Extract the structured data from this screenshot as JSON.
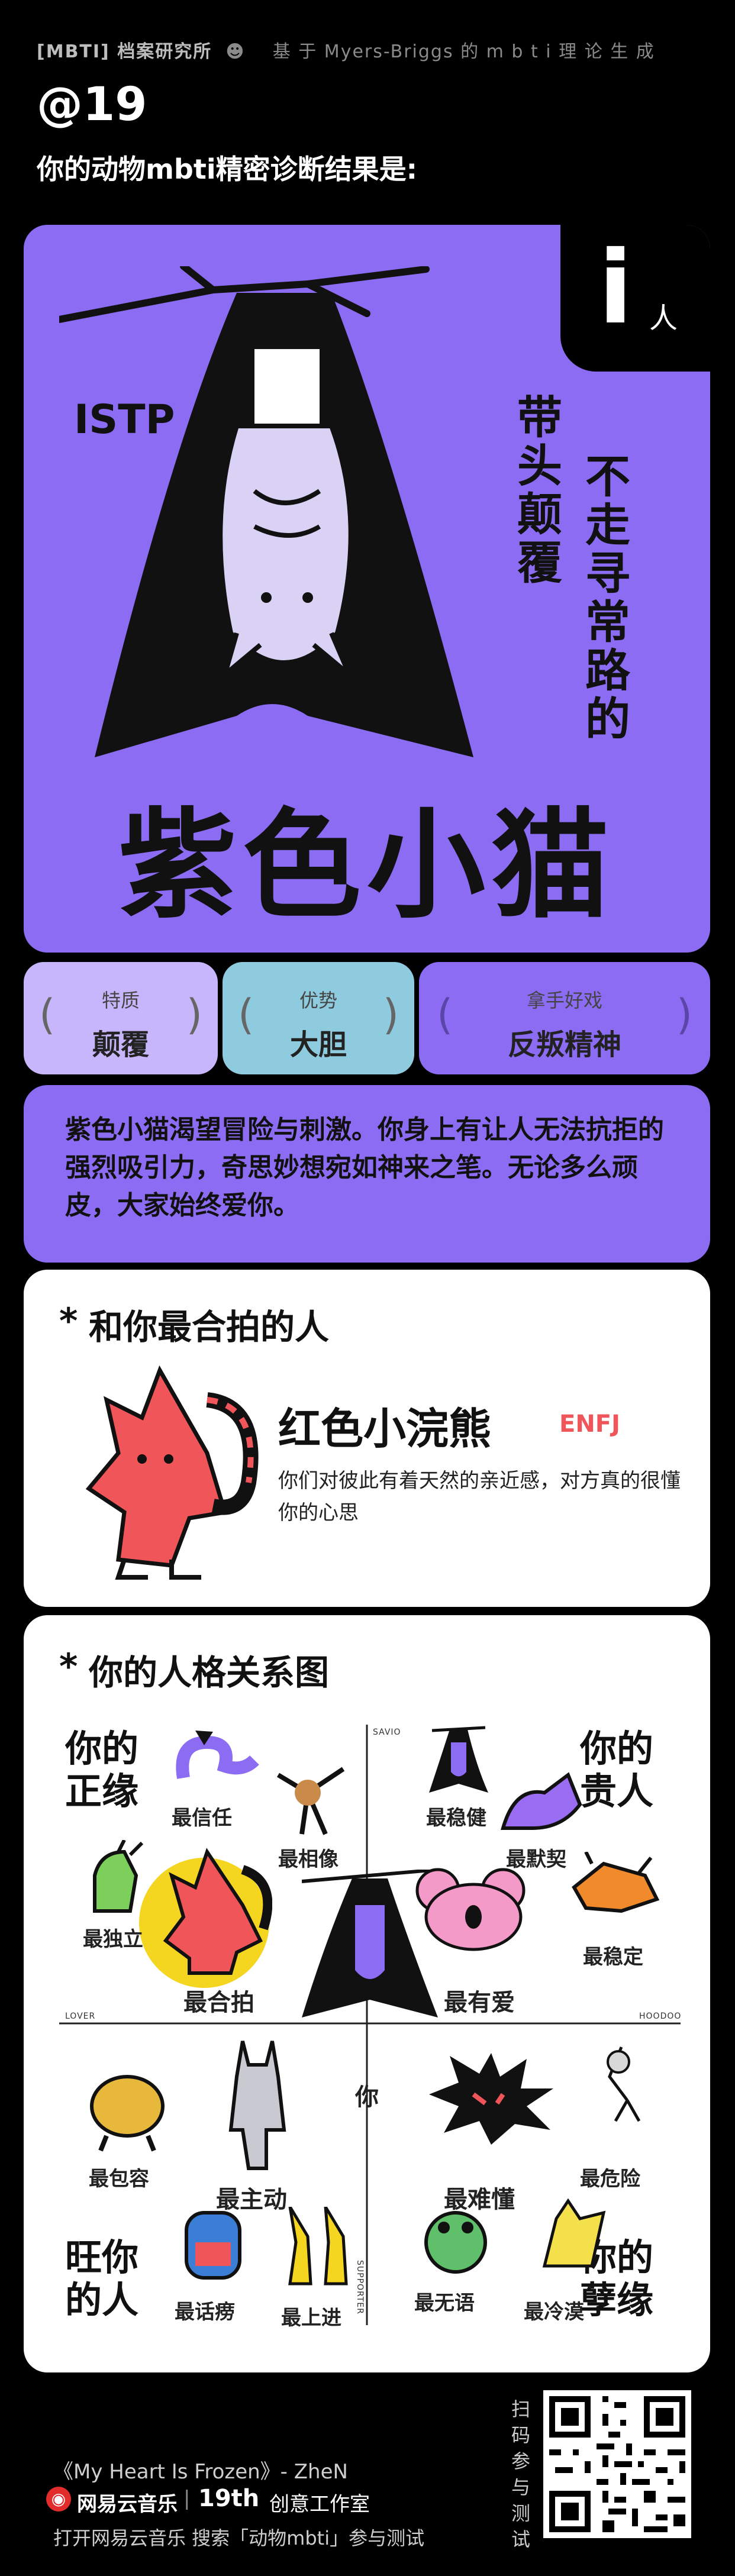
{
  "header": {
    "brand": "[MBTI] 档案研究所",
    "tagline": "基 于 Myers-Briggs 的 m b t i 理 论 生 成",
    "number": "@19",
    "subtitle": "你的动物mbti精密诊断结果是:"
  },
  "result": {
    "letter": "i",
    "letter_label": "人",
    "mbti": "ISTP",
    "trait_col1": "带头颠覆",
    "trait_col2": "不走寻常路的",
    "name": "紫色小猫"
  },
  "traits": [
    {
      "title": "特质",
      "value": "颠覆",
      "color": "#c7b6fb"
    },
    {
      "title": "优势",
      "value": "大胆",
      "color": "#8fcbdf"
    },
    {
      "title": "拿手好戏",
      "value": "反叛精神",
      "color": "#8b6cf2"
    }
  ],
  "description": "紫色小猫渴望冒险与刺激。你身上有让人无法抗拒的强烈吸引力，奇思妙想宛如神来之笔。无论多么顽皮，大家始终爱你。",
  "match": {
    "heading": "和你最合拍的人",
    "name": "红色小浣熊",
    "mbti": "ENFJ",
    "text": "你们对彼此有着天然的亲近感，对方真的很懂你的心思"
  },
  "relations": {
    "heading": "你的人格关系图",
    "corner_tl": "你的正缘",
    "corner_tr": "你的贵人",
    "corner_bl": "旺你的人",
    "corner_br": "你的孽缘",
    "axis_top": "SAVIO",
    "axis_left": "LOVER",
    "axis_right": "HOODOO",
    "axis_bottom": "SUPPORTER",
    "center": "你",
    "labels": {
      "l1": "最信任",
      "l2": "最相像",
      "l3": "最独立",
      "l4": "最合拍",
      "r1": "最稳健",
      "r2": "最默契",
      "r3": "最有爱",
      "r4": "最稳定",
      "b1": "最包容",
      "b2": "最主动",
      "b3": "最话痨",
      "b4": "最上进",
      "c1": "最难懂",
      "c2": "最危险",
      "c3": "最无语",
      "c4": "最冷漠"
    }
  },
  "footer": {
    "song": "《My Heart Is Frozen》- ZheN",
    "app": "网易云音乐",
    "studio_num": "19th",
    "studio": "创意工作室",
    "cta": "打开网易云音乐 搜索「动物mbti」参与测试",
    "scan": "扫码参与测试"
  },
  "colors": {
    "purple": "#8b6cf2",
    "light_purple": "#c7b6fb",
    "blue": "#8fcbdf",
    "red": "#f0555a",
    "yellow": "#f4d51f"
  }
}
